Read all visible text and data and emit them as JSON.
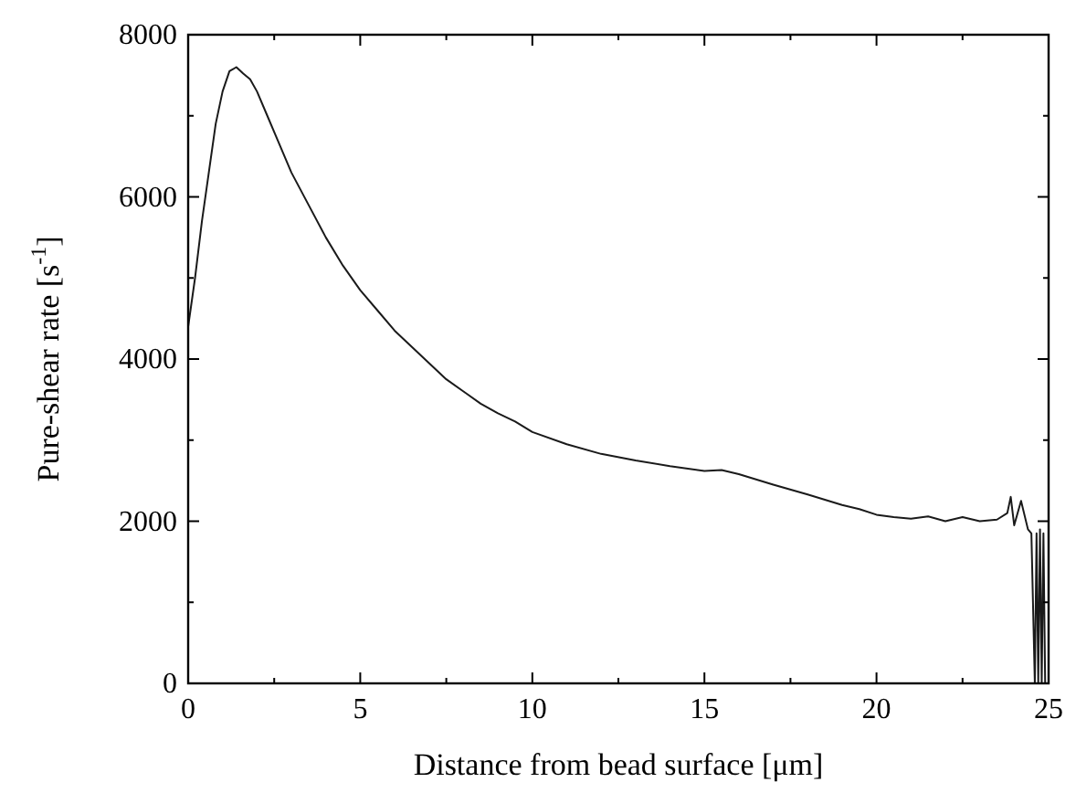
{
  "chart_data": {
    "type": "line",
    "xlabel": "Distance from bead surface [μm]",
    "ylabel": "Pure-shear rate [s$^{-1}$]",
    "xlim": [
      0,
      25
    ],
    "ylim": [
      0,
      8000
    ],
    "xticks": [
      0,
      {
        "value": 2.5,
        "label": null
      },
      5,
      {
        "value": 7.5,
        "label": null
      },
      10,
      {
        "value": 12.5,
        "label": null
      },
      15,
      {
        "value": 17.5,
        "label": null
      },
      20,
      {
        "value": 22.5,
        "label": null
      },
      25
    ],
    "yticks": [
      0,
      {
        "value": 1000,
        "label": null
      },
      2000,
      {
        "value": 3000,
        "label": null
      },
      4000,
      {
        "value": 5000,
        "label": null
      },
      6000,
      {
        "value": 7000,
        "label": null
      },
      8000
    ],
    "series": [
      {
        "color": "#1a1a1a",
        "x": [
          0,
          0.2,
          0.4,
          0.6,
          0.8,
          1.0,
          1.2,
          1.4,
          1.6,
          1.8,
          2.0,
          2.3,
          2.6,
          3,
          3.5,
          4,
          4.5,
          5,
          5.5,
          6,
          6.5,
          7,
          7.5,
          8,
          8.5,
          9,
          9.5,
          10,
          11,
          12,
          13,
          14,
          15,
          15.5,
          16,
          17,
          18,
          19,
          19.5,
          20,
          20.5,
          21,
          21.5,
          22,
          22.5,
          23,
          23.5,
          23.8,
          23.9,
          24.0,
          24.2,
          24.4,
          24.5,
          24.6,
          24.65,
          24.7,
          24.75,
          24.8,
          24.85,
          24.9
        ],
        "values": [
          4400,
          5000,
          5700,
          6300,
          6900,
          7300,
          7550,
          7600,
          7520,
          7450,
          7300,
          7000,
          6700,
          6300,
          5900,
          5500,
          5150,
          4850,
          4600,
          4350,
          4150,
          3950,
          3750,
          3600,
          3450,
          3330,
          3230,
          3100,
          2950,
          2830,
          2750,
          2680,
          2620,
          2630,
          2580,
          2450,
          2330,
          2200,
          2150,
          2080,
          2050,
          2030,
          2060,
          2000,
          2050,
          2000,
          2020,
          2100,
          2300,
          1950,
          2250,
          1900,
          1850,
          0,
          1850,
          0,
          1900,
          0,
          1850,
          0
        ]
      }
    ]
  }
}
